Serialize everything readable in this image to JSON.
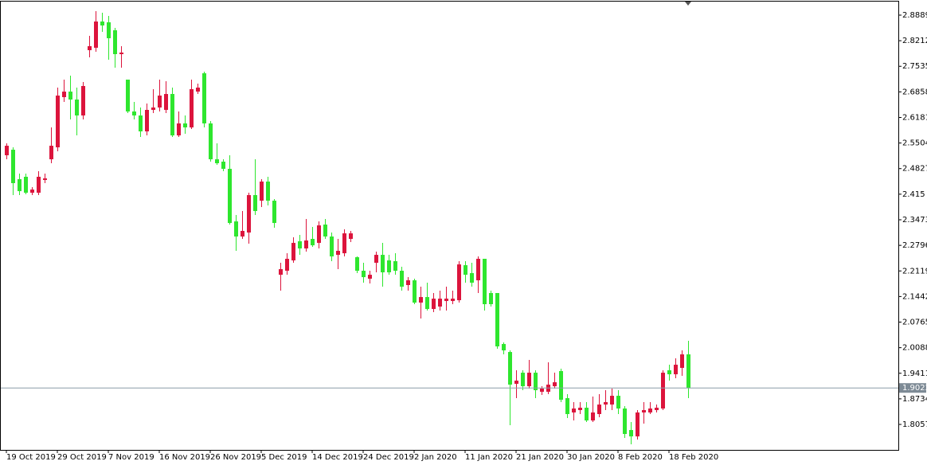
{
  "chart_data": {
    "type": "candlestick",
    "categories": [
      "19 Oct 2019",
      null,
      null,
      null,
      null,
      null,
      null,
      null,
      "29 Oct 2019",
      null,
      null,
      null,
      null,
      null,
      null,
      null,
      "7 Nov 2019",
      null,
      null,
      null,
      null,
      null,
      null,
      null,
      "16 Nov 2019",
      null,
      null,
      null,
      null,
      null,
      null,
      null,
      "26 Nov 2019",
      null,
      null,
      null,
      null,
      null,
      null,
      null,
      "5 Dec 2019",
      null,
      null,
      null,
      null,
      null,
      null,
      null,
      "14 Dec 2019",
      null,
      null,
      null,
      null,
      null,
      null,
      null,
      "24 Dec 2019",
      null,
      null,
      null,
      null,
      null,
      null,
      null,
      "2 Jan 2020",
      null,
      null,
      null,
      null,
      null,
      null,
      null,
      "11 Jan 2020",
      null,
      null,
      null,
      null,
      null,
      null,
      null,
      "21 Jan 2020",
      null,
      null,
      null,
      null,
      null,
      null,
      null,
      "30 Jan 2020",
      null,
      null,
      null,
      null,
      null,
      null,
      null,
      "8 Feb 2020",
      null,
      null,
      null,
      null,
      null,
      null,
      null,
      "18 Feb 2020",
      null,
      null,
      null
    ],
    "open": [
      2.518,
      2.5327,
      2.4547,
      2.4611,
      2.4189,
      2.4189,
      2.4526,
      2.5074,
      2.539,
      2.6718,
      2.6865,
      2.6655,
      2.6233,
      2.7961,
      2.8025,
      2.872,
      2.8699,
      2.8488,
      2.7856,
      2.7182,
      2.6339,
      2.6233,
      2.5812,
      2.6381,
      2.6444,
      2.6381,
      2.6802,
      2.5706,
      2.6023,
      2.5917,
      2.6865,
      2.735,
      2.6023,
      2.5074,
      2.5011,
      2.4821,
      2.343,
      2.303,
      2.3135,
      2.4126,
      2.3978,
      2.4484,
      2.3978,
      2.2018,
      2.2124,
      2.2398,
      2.2904,
      2.2714,
      2.2967,
      2.2861,
      2.3346,
      2.303,
      2.2545,
      2.2587,
      2.2967,
      2.2482,
      2.2124,
      2.1913,
      2.2335,
      2.2545,
      2.2398,
      2.2377,
      2.2124,
      2.1745,
      2.1871,
      2.1281,
      2.1428,
      2.1112,
      2.1176,
      2.1323,
      2.1323,
      2.1344,
      2.2271,
      2.2061,
      2.1871,
      2.244,
      2.1534,
      2.1534,
      2.0185,
      1.9974,
      1.9131,
      1.9426,
      1.9068,
      1.9426,
      1.8921,
      1.8921,
      1.9068,
      1.9469,
      1.8752,
      1.8373,
      1.8436,
      1.8499,
      1.8162,
      1.8331,
      1.8583,
      1.8583,
      1.8815,
      1.8478,
      1.7909,
      1.774,
      1.8373,
      1.8373,
      1.8436,
      1.8478,
      1.949,
      1.9384,
      1.9553,
      1.9911
    ],
    "high": [
      2.5496,
      2.539,
      2.4695,
      2.4695,
      2.4337,
      2.4758,
      2.4695,
      2.5917,
      2.6971,
      2.7182,
      2.7287,
      2.6971,
      2.7118,
      2.8341,
      2.8994,
      2.8952,
      2.8868,
      2.8551,
      2.8067,
      2.7182,
      2.6592,
      2.6444,
      2.6549,
      2.6929,
      2.7182,
      2.7139,
      2.6971,
      2.6339,
      2.6233,
      2.7182,
      2.7076,
      2.7392,
      2.6086,
      2.5496,
      2.5074,
      2.518,
      2.3599,
      2.3704,
      2.4189,
      2.5074,
      2.4547,
      2.4611,
      2.402,
      2.2335,
      2.2587,
      2.3009,
      2.3072,
      2.3494,
      2.3283,
      2.343,
      2.3494,
      2.3135,
      2.2967,
      2.322,
      2.3178,
      2.2503,
      2.2335,
      2.2124,
      2.263,
      2.2861,
      2.2545,
      2.2587,
      2.2229,
      2.1955,
      2.1913,
      2.1702,
      2.1808,
      2.1534,
      2.1597,
      2.1702,
      2.1597,
      2.2377,
      2.2377,
      2.2335,
      2.2503,
      2.244,
      2.1597,
      2.1534,
      2.0227,
      2.0016,
      1.949,
      1.949,
      1.9764,
      1.949,
      1.9068,
      1.97,
      1.9426,
      1.9532,
      1.8857,
      1.8647,
      1.8647,
      1.8647,
      1.8794,
      1.8857,
      1.8963,
      1.9005,
      1.8963,
      1.8541,
      1.812,
      1.8436,
      1.8647,
      1.8647,
      1.8583,
      1.949,
      1.9637,
      1.9806,
      2.0016,
      2.0269
    ],
    "low": [
      2.5074,
      2.4126,
      2.4126,
      2.4147,
      2.4126,
      2.4126,
      2.4442,
      2.4969,
      2.5285,
      2.6592,
      2.6128,
      2.5706,
      2.6128,
      2.7772,
      2.7919,
      2.8446,
      2.7708,
      2.7498,
      2.7498,
      2.6296,
      2.6128,
      2.5664,
      2.5706,
      2.6296,
      2.6339,
      2.6296,
      2.5664,
      2.5664,
      2.5749,
      2.5875,
      2.6802,
      2.5917,
      2.5011,
      2.4927,
      2.4758,
      2.3346,
      2.2651,
      2.2967,
      2.284,
      2.3599,
      2.381,
      2.3852,
      2.3262,
      2.1597,
      2.2018,
      2.2335,
      2.2545,
      2.263,
      2.2756,
      2.2714,
      2.2967,
      2.2377,
      2.2166,
      2.2503,
      2.2883,
      2.2061,
      2.1808,
      2.1787,
      2.2082,
      2.1702,
      2.2018,
      2.2018,
      2.1597,
      2.1597,
      2.1239,
      2.0859,
      2.107,
      2.1028,
      2.107,
      2.107,
      2.1239,
      2.1281,
      2.1808,
      2.1702,
      2.1534,
      2.107,
      2.1176,
      2.0059,
      1.9911,
      1.8035,
      1.8752,
      1.8963,
      1.9005,
      1.8752,
      1.8836,
      1.8857,
      1.9005,
      1.8647,
      1.8225,
      1.8162,
      1.8331,
      1.812,
      1.812,
      1.8246,
      1.8436,
      1.8436,
      1.8331,
      1.7698,
      1.753,
      1.7656,
      1.8078,
      1.8331,
      1.8373,
      1.8436,
      1.9216,
      1.9279,
      1.9342,
      1.8752
    ],
    "close": [
      2.5432,
      2.4442,
      2.4231,
      2.4189,
      2.4273,
      2.4611,
      2.4568,
      2.5432,
      2.676,
      2.6865,
      2.6655,
      2.6233,
      2.7013,
      2.8067,
      2.872,
      2.8615,
      2.8277,
      2.7856,
      2.7898,
      2.6339,
      2.6233,
      2.5812,
      2.6381,
      2.6444,
      2.676,
      2.6802,
      2.5706,
      2.6023,
      2.5917,
      2.6929,
      2.6971,
      2.6023,
      2.5074,
      2.4969,
      2.4821,
      2.3388,
      2.303,
      2.3178,
      2.4126,
      2.3704,
      2.4484,
      2.3978,
      2.3388,
      2.2166,
      2.244,
      2.2861,
      2.2714,
      2.2925,
      2.2798,
      2.3325,
      2.303,
      2.2503,
      2.2651,
      2.3114,
      2.3114,
      2.2124,
      2.1955,
      2.2018,
      2.2545,
      2.2082,
      2.2082,
      2.2124,
      2.1702,
      2.1871,
      2.1281,
      2.1428,
      2.1112,
      2.1386,
      2.1386,
      2.1386,
      2.1386,
      2.2292,
      2.2018,
      2.1808,
      2.244,
      2.1239,
      2.1239,
      2.0122,
      2.0016,
      1.911,
      1.9216,
      1.9068,
      1.9426,
      1.8963,
      1.9005,
      1.911,
      1.9173,
      1.871,
      1.8331,
      1.8478,
      1.8499,
      1.8162,
      1.8373,
      1.8583,
      1.8647,
      1.8815,
      1.8478,
      1.7804,
      1.774,
      1.8373,
      1.8436,
      1.8478,
      1.8499,
      1.9426,
      1.9384,
      1.9637,
      1.9911,
      1.9022
    ],
    "up_color": "#dc143c",
    "down_color": "#2ee62e",
    "current_price": 1.9022,
    "ylim": [
      1.7383,
      2.9247
    ],
    "yticks": [
      2.8889,
      2.8212,
      2.7535,
      2.6858,
      2.6181,
      2.5504,
      2.4827,
      2.415,
      2.3473,
      2.2796,
      2.2119,
      2.1442,
      2.0765,
      2.0088,
      1.9411,
      1.8734,
      1.8057
    ]
  }
}
